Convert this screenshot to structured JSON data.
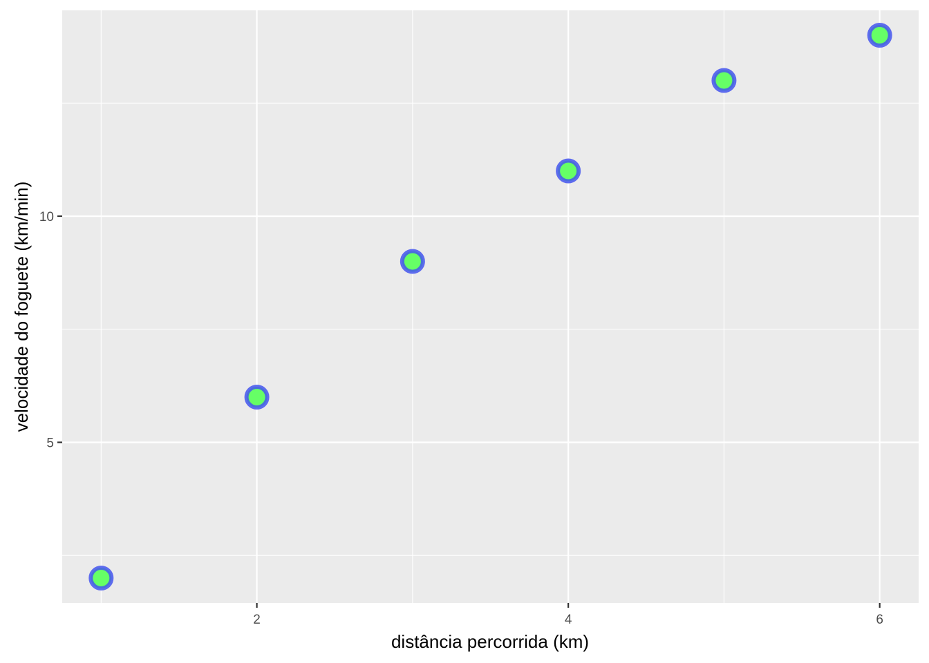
{
  "chart_data": {
    "type": "scatter",
    "title": "",
    "xlabel": "distância percorrida (km)",
    "ylabel": "velocidade do foguete (km/min)",
    "x": [
      1,
      2,
      3,
      4,
      5,
      6
    ],
    "y": [
      2,
      6,
      9,
      11,
      13,
      14
    ],
    "xlim": [
      0.75,
      6.25
    ],
    "ylim": [
      1.45,
      14.55
    ],
    "x_ticks": [
      2,
      4,
      6
    ],
    "x_tick_labels": [
      "2",
      "4",
      "6"
    ],
    "x_minor": [
      1,
      3,
      5
    ],
    "y_ticks": [
      5,
      10
    ],
    "y_tick_labels": [
      "5",
      "10"
    ],
    "y_minor": [
      2.5,
      7.5,
      12.5
    ],
    "grid": true,
    "legend": "none",
    "point_fill": "#66FF66",
    "point_stroke": "#4455EE",
    "panel_background": "#EBEBEB"
  }
}
